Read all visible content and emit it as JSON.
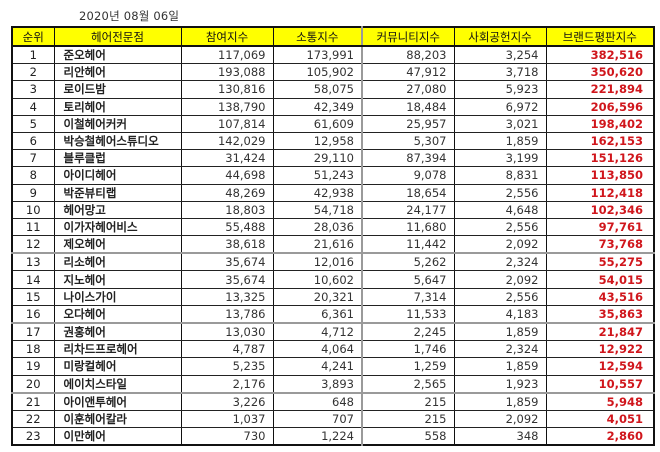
{
  "date_label": "2020년 08월 06일",
  "colors": {
    "header_bg": "#ffff00",
    "brand_value": "#d0161c",
    "border": "#111111"
  },
  "table": {
    "headers": {
      "rank": "순위",
      "name": "헤어전문점",
      "participation": "참여지수",
      "communication": "소통지수",
      "community": "커뮤니티지수",
      "social": "사회공헌지수",
      "brand": "브랜드평판지수"
    },
    "rows": [
      {
        "rank": "1",
        "name": "준오헤어",
        "participation": "117,069",
        "communication": "173,991",
        "community": "88,203",
        "social": "3,254",
        "brand": "382,516"
      },
      {
        "rank": "2",
        "name": "리안헤어",
        "participation": "193,088",
        "communication": "105,902",
        "community": "47,912",
        "social": "3,718",
        "brand": "350,620"
      },
      {
        "rank": "3",
        "name": "로이드밤",
        "participation": "130,816",
        "communication": "58,075",
        "community": "27,080",
        "social": "5,923",
        "brand": "221,894"
      },
      {
        "rank": "4",
        "name": "토리헤어",
        "participation": "138,790",
        "communication": "42,349",
        "community": "18,484",
        "social": "6,972",
        "brand": "206,596"
      },
      {
        "rank": "5",
        "name": "이철헤어커커",
        "participation": "107,814",
        "communication": "61,609",
        "community": "25,957",
        "social": "3,021",
        "brand": "198,402"
      },
      {
        "rank": "6",
        "name": "박승철헤어스튜디오",
        "participation": "142,029",
        "communication": "12,958",
        "community": "5,307",
        "social": "1,859",
        "brand": "162,153"
      },
      {
        "rank": "7",
        "name": "블루클럽",
        "participation": "31,424",
        "communication": "29,110",
        "community": "87,394",
        "social": "3,199",
        "brand": "151,126"
      },
      {
        "rank": "8",
        "name": "아이디헤어",
        "participation": "44,698",
        "communication": "51,243",
        "community": "9,078",
        "social": "8,831",
        "brand": "113,850"
      },
      {
        "rank": "9",
        "name": "박준뷰티랩",
        "participation": "48,269",
        "communication": "42,938",
        "community": "18,654",
        "social": "2,556",
        "brand": "112,418"
      },
      {
        "rank": "10",
        "name": "헤어망고",
        "participation": "18,803",
        "communication": "54,718",
        "community": "24,177",
        "social": "4,648",
        "brand": "102,346"
      },
      {
        "rank": "11",
        "name": "이가자헤어비스",
        "participation": "55,488",
        "communication": "28,036",
        "community": "11,680",
        "social": "2,556",
        "brand": "97,761"
      },
      {
        "rank": "12",
        "name": "제오헤어",
        "participation": "38,618",
        "communication": "21,616",
        "community": "11,442",
        "social": "2,092",
        "brand": "73,768"
      },
      {
        "rank": "13",
        "name": "리소헤어",
        "participation": "35,674",
        "communication": "12,016",
        "community": "5,262",
        "social": "2,324",
        "brand": "55,275"
      },
      {
        "rank": "14",
        "name": "지노헤어",
        "participation": "35,674",
        "communication": "10,602",
        "community": "5,647",
        "social": "2,092",
        "brand": "54,015"
      },
      {
        "rank": "15",
        "name": "나이스가이",
        "participation": "13,325",
        "communication": "20,321",
        "community": "7,314",
        "social": "2,556",
        "brand": "43,516"
      },
      {
        "rank": "16",
        "name": "오다헤어",
        "participation": "13,786",
        "communication": "6,361",
        "community": "11,533",
        "social": "4,183",
        "brand": "35,863"
      },
      {
        "rank": "17",
        "name": "권홍헤어",
        "participation": "13,030",
        "communication": "4,712",
        "community": "2,245",
        "social": "1,859",
        "brand": "21,847"
      },
      {
        "rank": "18",
        "name": "리차드프로헤어",
        "participation": "4,787",
        "communication": "4,064",
        "community": "1,746",
        "social": "2,324",
        "brand": "12,922"
      },
      {
        "rank": "19",
        "name": "미랑컬헤어",
        "participation": "5,235",
        "communication": "4,241",
        "community": "1,259",
        "social": "1,859",
        "brand": "12,594"
      },
      {
        "rank": "20",
        "name": "에이치스타일",
        "participation": "2,176",
        "communication": "3,893",
        "community": "2,565",
        "social": "1,923",
        "brand": "10,557"
      },
      {
        "rank": "21",
        "name": "아이앤투헤어",
        "participation": "3,226",
        "communication": "648",
        "community": "215",
        "social": "1,859",
        "brand": "5,948"
      },
      {
        "rank": "22",
        "name": "이훈헤어칼라",
        "participation": "1,037",
        "communication": "707",
        "community": "215",
        "social": "2,092",
        "brand": "4,051"
      },
      {
        "rank": "23",
        "name": "이만헤어",
        "participation": "730",
        "communication": "1,224",
        "community": "558",
        "social": "348",
        "brand": "2,860"
      }
    ]
  }
}
